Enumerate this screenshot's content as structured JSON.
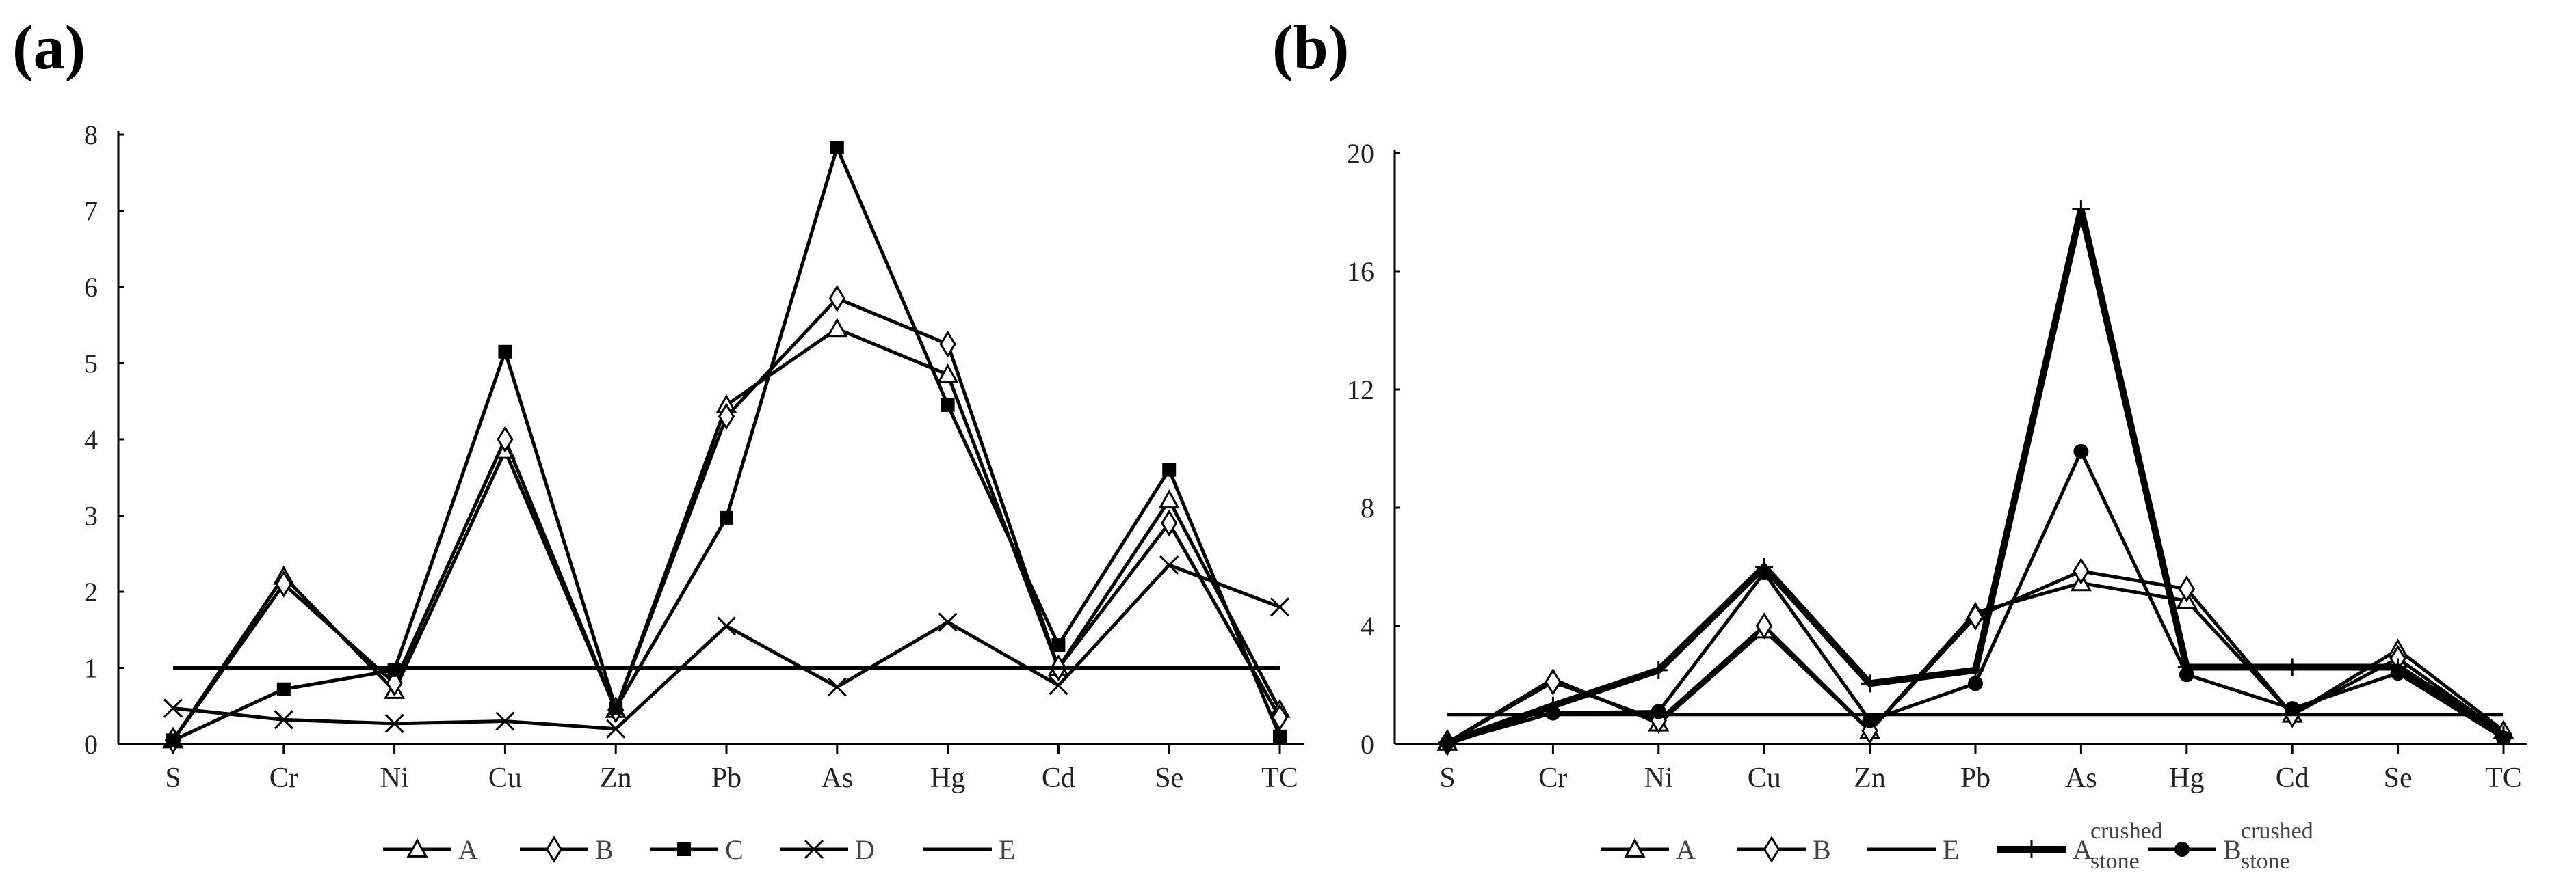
{
  "chart_data": [
    {
      "type": "line",
      "panel_label": "(a)",
      "categories": [
        "S",
        "Cr",
        "Ni",
        "Cu",
        "Zn",
        "Pb",
        "As",
        "Hg",
        "Cd",
        "Se",
        "TC"
      ],
      "ylim": [
        0,
        8
      ],
      "yticks": [
        0,
        1,
        2,
        3,
        4,
        5,
        6,
        7,
        8
      ],
      "xlabel": "",
      "ylabel": "",
      "grid": false,
      "legend_placement": "bottom",
      "series": [
        {
          "name": "A",
          "marker": "triangle",
          "values": [
            0.05,
            2.2,
            0.7,
            3.85,
            0.45,
            4.45,
            5.45,
            4.85,
            1.0,
            3.2,
            0.45
          ]
        },
        {
          "name": "B",
          "marker": "diamond",
          "values": [
            0.05,
            2.1,
            0.8,
            4.0,
            0.45,
            4.3,
            5.85,
            5.25,
            1.0,
            2.9,
            0.35
          ]
        },
        {
          "name": "C",
          "marker": "square",
          "values": [
            0.05,
            0.72,
            0.97,
            5.15,
            0.47,
            2.97,
            7.83,
            4.45,
            1.3,
            3.6,
            0.1
          ]
        },
        {
          "name": "D",
          "marker": "x",
          "values": [
            0.47,
            0.32,
            0.27,
            0.3,
            0.2,
            1.55,
            0.75,
            1.6,
            0.77,
            2.35,
            1.8
          ]
        },
        {
          "name": "E",
          "marker": "none",
          "values": [
            1,
            1,
            1,
            1,
            1,
            1,
            1,
            1,
            1,
            1,
            1
          ]
        }
      ]
    },
    {
      "type": "line",
      "panel_label": "(b)",
      "categories": [
        "S",
        "Cr",
        "Ni",
        "Cu",
        "Zn",
        "Pb",
        "As",
        "Hg",
        "Cd",
        "Se",
        "TC"
      ],
      "ylim": [
        0,
        20
      ],
      "yticks": [
        0,
        4,
        8,
        12,
        16,
        20
      ],
      "xlabel": "",
      "ylabel": "",
      "grid": false,
      "legend_placement": "bottom",
      "series": [
        {
          "name": "A",
          "sub": "",
          "marker": "triangle",
          "values": [
            0.05,
            2.2,
            0.7,
            3.85,
            0.45,
            4.45,
            5.45,
            4.85,
            1.0,
            3.2,
            0.45
          ]
        },
        {
          "name": "B",
          "sub": "",
          "marker": "diamond",
          "values": [
            0.05,
            2.1,
            0.8,
            4.0,
            0.45,
            4.3,
            5.85,
            5.25,
            1.0,
            2.9,
            0.35
          ]
        },
        {
          "name": "E",
          "sub": "",
          "marker": "none",
          "values": [
            1,
            1,
            1,
            1,
            1,
            1,
            1,
            1,
            1,
            1,
            1
          ]
        },
        {
          "name": "A",
          "sub": "crushed stone",
          "marker": "plus",
          "values": [
            0.05,
            1.3,
            2.5,
            6.0,
            2.05,
            2.5,
            18.1,
            2.6,
            2.6,
            2.6,
            0.3
          ]
        },
        {
          "name": "B",
          "sub": "crushed stone",
          "marker": "dot",
          "values": [
            0.05,
            1.05,
            1.1,
            5.8,
            0.8,
            2.05,
            9.9,
            2.35,
            1.2,
            2.4,
            0.2
          ]
        }
      ]
    }
  ]
}
